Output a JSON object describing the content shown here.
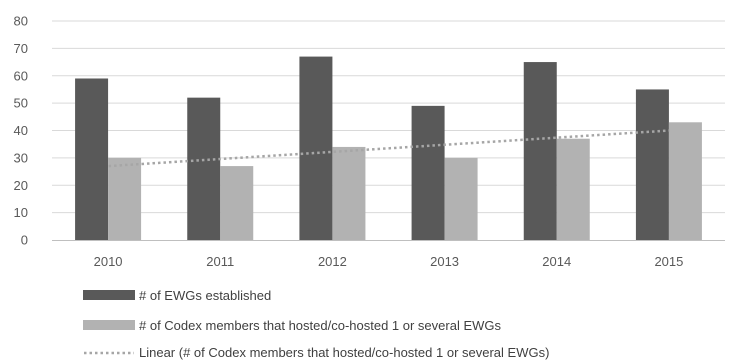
{
  "chart_data": {
    "type": "bar",
    "categories": [
      "2010",
      "2011",
      "2012",
      "2013",
      "2014",
      "2015"
    ],
    "ylim": [
      0,
      80
    ],
    "yticks": [
      0,
      10,
      20,
      30,
      40,
      50,
      60,
      70,
      80
    ],
    "grid": true,
    "legend_position": "bottom",
    "series": [
      {
        "name": "# of EWGs established",
        "values": [
          59,
          52,
          67,
          49,
          65,
          55
        ],
        "color": "#595959"
      },
      {
        "name": "# of Codex members that hosted/co-hosted 1 or several EWGs",
        "values": [
          30,
          27,
          34,
          30,
          37,
          43
        ],
        "color": "#b2b2b2"
      }
    ],
    "trendline": {
      "name": "Linear (# of Codex members that hosted/co-hosted 1 or several EWGs)",
      "type": "linear",
      "of_series": 1,
      "start": 27,
      "end": 40,
      "color": "#a6a6a6",
      "style": "dotted"
    },
    "colors": {
      "grid": "#d9d9d9",
      "axis": "#bfbfbf",
      "text": "#595959"
    }
  }
}
